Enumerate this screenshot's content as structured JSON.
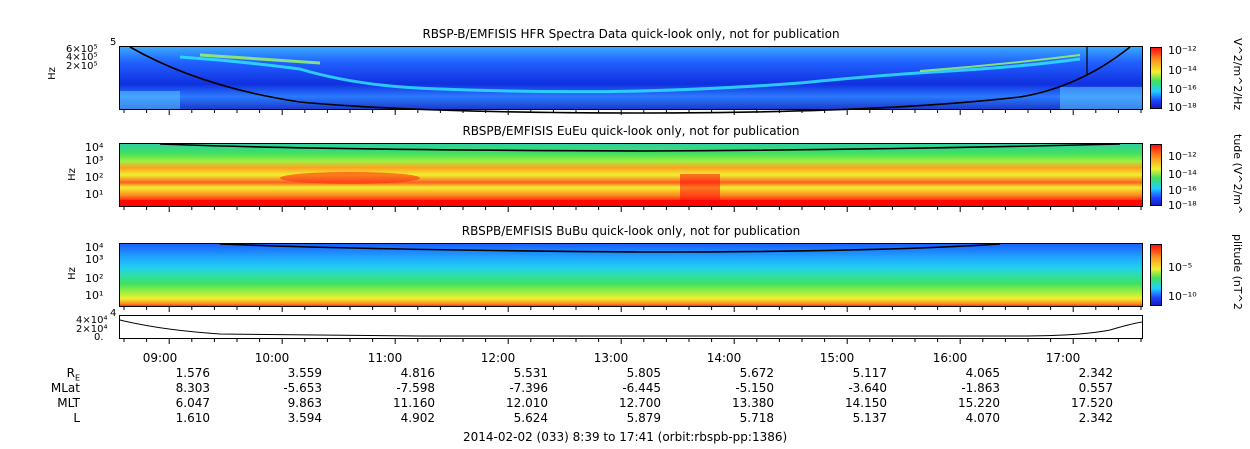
{
  "chart_data": [
    {
      "type": "heatmap",
      "title": "RBSP-B/EMFISIS  HFR Spectra Data quick-look only, not for publication",
      "ylabel": "Hz",
      "yticks": [
        "6×10⁵",
        "4×10⁵",
        "2×10⁵"
      ],
      "ytick_top": "5",
      "colorbar_label": "V^2/m^2/Hz",
      "colorbar_ticks": [
        "10⁻¹²",
        "10⁻¹⁴",
        "10⁻¹⁶",
        "10⁻¹⁸"
      ]
    },
    {
      "type": "heatmap",
      "title": "RBSPB/EMFISIS  EuEu quick-look only, not for publication",
      "ylabel": "Hz",
      "yticks": [
        "10⁴",
        "10³",
        "10²",
        "10¹"
      ],
      "colorbar_label": "tude (V^2/m^",
      "colorbar_ticks": [
        "10⁻¹²",
        "10⁻¹⁴",
        "10⁻¹⁶",
        "10⁻¹⁸"
      ]
    },
    {
      "type": "heatmap",
      "title": "RBSPB/EMFISIS  BuBu quick-look only, not for publication",
      "ylabel": "Hz",
      "yticks": [
        "10⁴",
        "10³",
        "10²",
        "10¹"
      ],
      "colorbar_label": "plitude (nT^2",
      "colorbar_ticks": [
        "10⁻⁵",
        "10⁻¹⁰"
      ]
    },
    {
      "type": "line",
      "yticks": [
        "4×10⁴",
        "2×10⁴",
        "0."
      ],
      "ytick_top": "4"
    }
  ],
  "axis": {
    "times": [
      "09:00",
      "10:00",
      "11:00",
      "12:00",
      "13:00",
      "14:00",
      "15:00",
      "16:00",
      "17:00"
    ],
    "rows": [
      {
        "label": "R_E",
        "values": [
          "1.576",
          "3.559",
          "4.816",
          "5.531",
          "5.805",
          "5.672",
          "5.117",
          "4.065",
          "2.342"
        ]
      },
      {
        "label": "MLat",
        "values": [
          "8.303",
          "-5.653",
          "-7.598",
          "-7.396",
          "-6.445",
          "-5.150",
          "-3.640",
          "-1.863",
          "0.557"
        ]
      },
      {
        "label": "MLT",
        "values": [
          "6.047",
          "9.863",
          "11.160",
          "12.010",
          "12.700",
          "13.380",
          "14.150",
          "15.220",
          "17.520"
        ]
      },
      {
        "label": "L",
        "values": [
          "1.610",
          "3.594",
          "4.902",
          "5.624",
          "5.879",
          "5.718",
          "5.137",
          "4.070",
          "2.342"
        ]
      }
    ],
    "footer": "2014-02-02 (033) 8:39 to 17:41 (orbit:rbspb-pp:1386)"
  },
  "colors": {
    "spec_blue": "#1a3cff",
    "spec_cyan": "#22d0ff",
    "spec_green": "#44e060",
    "spec_yellow": "#f2ee30",
    "spec_orange": "#ff9a20",
    "spec_red": "#ff2010"
  }
}
